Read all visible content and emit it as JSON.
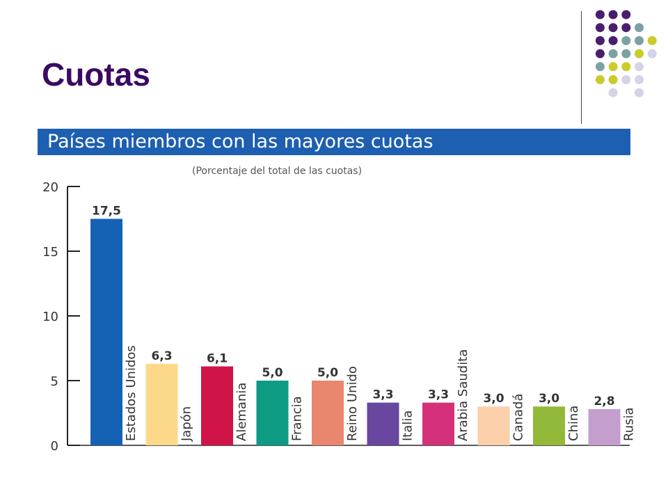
{
  "slide": {
    "title": "Cuotas"
  },
  "decoration": {
    "dot_colors": [
      "#4a1e6e",
      "#7ba1a3",
      "#c9cc2a",
      "#d6d3e8"
    ]
  },
  "chart_data": {
    "type": "bar",
    "title": "Países miembros con las mayores cuotas",
    "subtitle": "(Porcentaje del total de las cuotas)",
    "categories": [
      "Estados Unidos",
      "Japón",
      "Alemania",
      "Francia",
      "Reino Unido",
      "Italia",
      "Arabia Saudita",
      "Canadá",
      "China",
      "Rusia"
    ],
    "values": [
      17.5,
      6.3,
      6.1,
      5.0,
      5.0,
      3.3,
      3.3,
      3.0,
      3.0,
      2.8
    ],
    "value_labels": [
      "17,5",
      "6,3",
      "6,1",
      "5,0",
      "5,0",
      "3,3",
      "3,3",
      "3,0",
      "3,0",
      "2,8"
    ],
    "colors": [
      "#1562b5",
      "#fcd98a",
      "#d11447",
      "#0e9b84",
      "#e8866e",
      "#69479e",
      "#d4317a",
      "#fbd0aa",
      "#93b93a",
      "#c49fce"
    ],
    "y_ticks": [
      "0",
      "5",
      "10",
      "15",
      "20"
    ],
    "ylim": [
      0,
      20
    ],
    "grid": false,
    "title_color": "#1d5fb0"
  }
}
